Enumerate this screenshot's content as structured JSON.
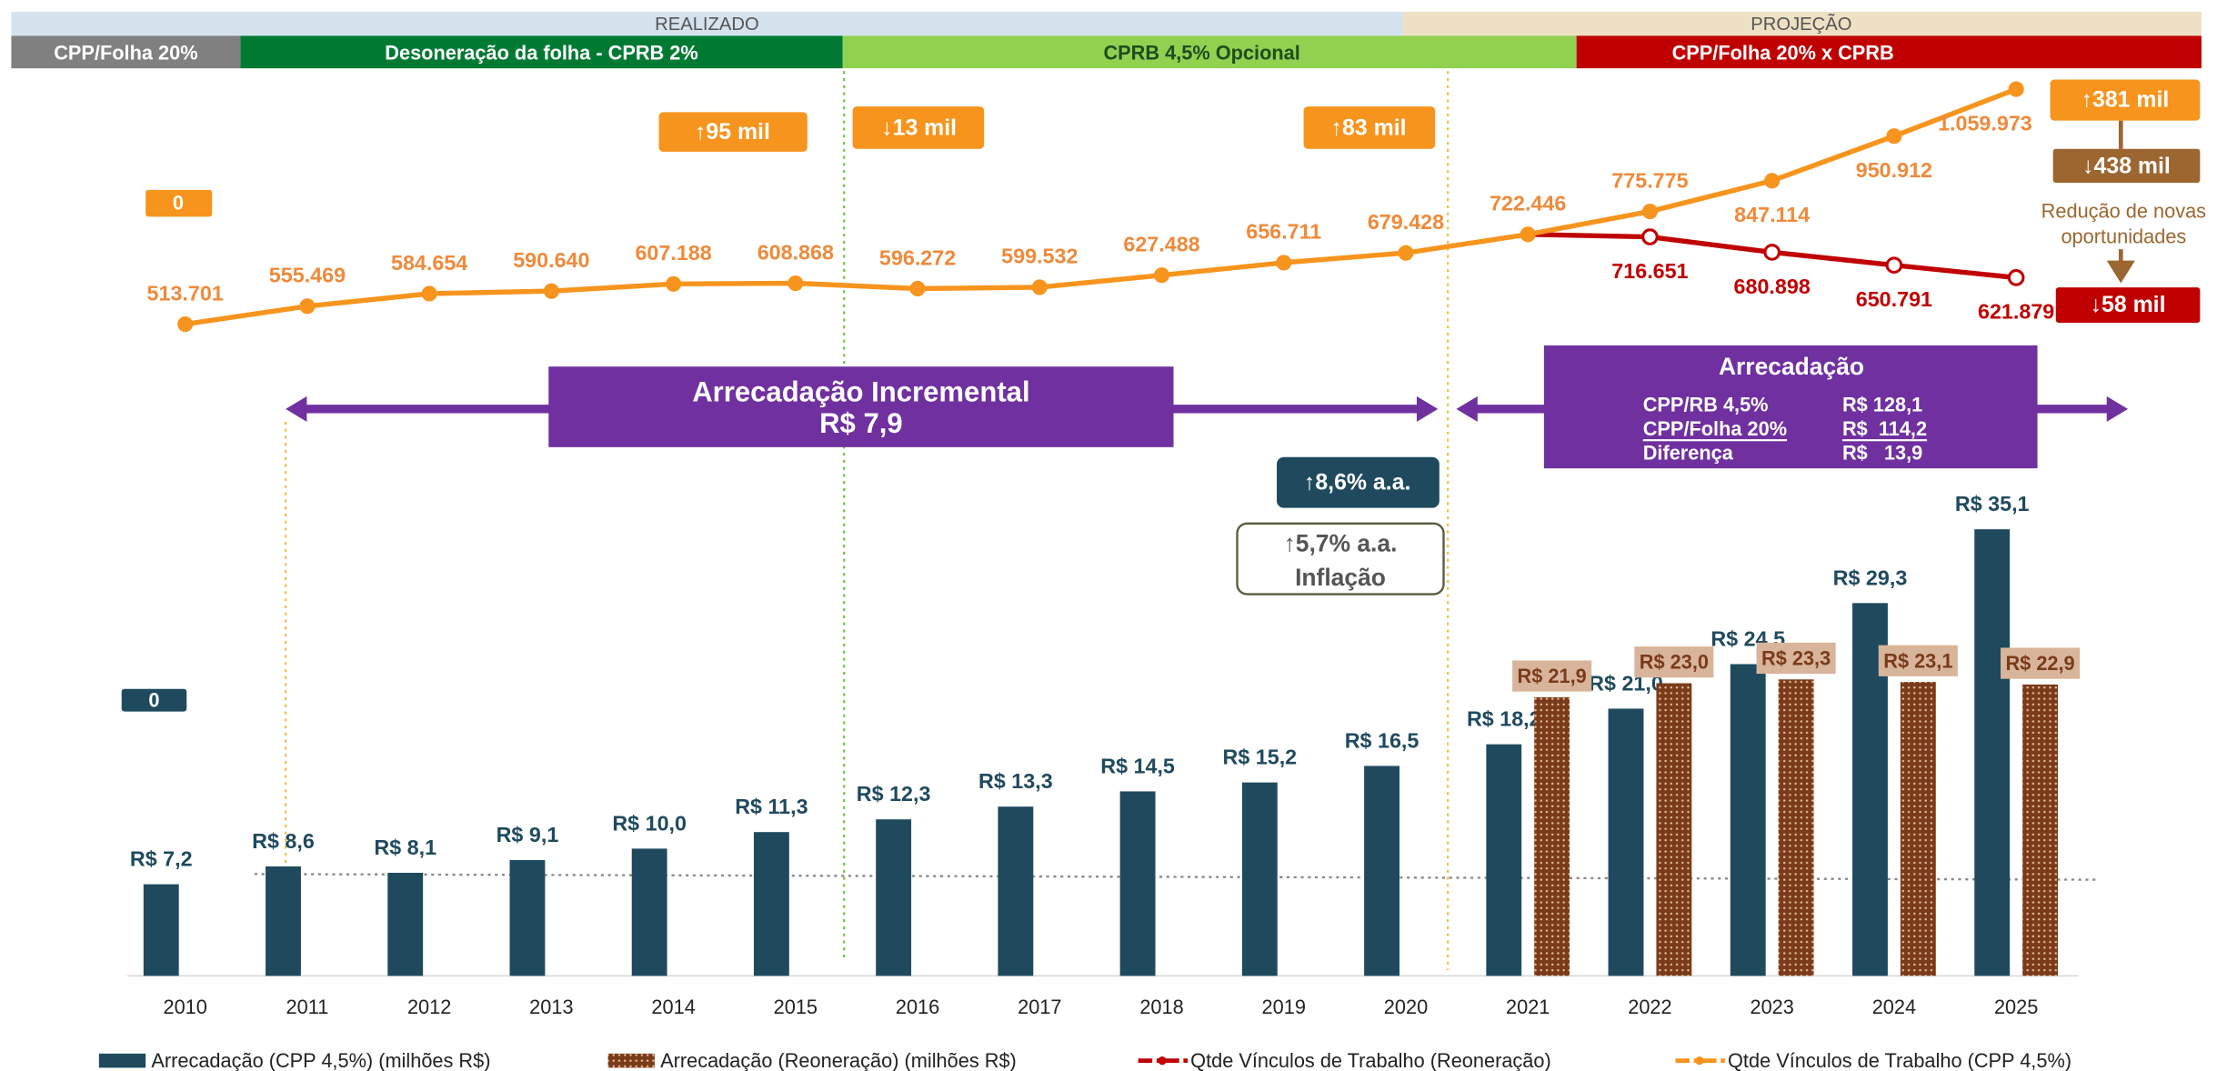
{
  "chart_data": {
    "type": "bar-line",
    "bands": {
      "phases": [
        "REALIZADO",
        "PROJEÇÃO"
      ],
      "periods": [
        "CPP/Folha 20%",
        "Desoneração da folha - CPRB 2%",
        "CPRB 4,5% Opcional",
        "CPP/Folha 20% x CPRB"
      ]
    },
    "categories": [
      "2010",
      "2011",
      "2012",
      "2013",
      "2014",
      "2015",
      "2016",
      "2017",
      "2018",
      "2019",
      "2020",
      "2021",
      "2022",
      "2023",
      "2024",
      "2025"
    ],
    "ylim": [
      0,
      40
    ],
    "y2lim": [
      400000,
      1100000
    ],
    "series": [
      {
        "name": "Arrecadação (CPP 4,5%) (milhões R$)",
        "type": "bar",
        "color": "#1f4a5e",
        "values": [
          7.2,
          8.6,
          8.1,
          9.1,
          10.0,
          11.3,
          12.3,
          13.3,
          14.5,
          15.2,
          16.5,
          18.2,
          21.0,
          24.5,
          29.3,
          35.1
        ],
        "value_labels": [
          "R$ 7,2",
          "R$ 8,6",
          "R$ 8,1",
          "R$ 9,1",
          "R$ 10,0",
          "R$ 11,3",
          "R$ 12,3",
          "R$ 13,3",
          "R$ 14,5",
          "R$ 15,2",
          "R$ 16,5",
          "R$ 18,2",
          "R$ 21,0",
          "R$ 24,5",
          "R$ 29,3",
          "R$ 35,1"
        ]
      },
      {
        "name": "Arrecadação (Reoneração) (milhões R$)",
        "type": "bar",
        "color": "#7a3b1a",
        "values": [
          null,
          null,
          null,
          null,
          null,
          null,
          null,
          null,
          null,
          null,
          null,
          21.9,
          23.0,
          23.3,
          23.1,
          22.9
        ],
        "value_labels": [
          null,
          null,
          null,
          null,
          null,
          null,
          null,
          null,
          null,
          null,
          null,
          "R$ 21,9",
          "R$ 23,0",
          "R$ 23,3",
          "R$ 23,1",
          "R$ 22,9"
        ]
      },
      {
        "name": "Qtde Vínculos de Trabalho (Reoneração)",
        "type": "line",
        "axis": "y2",
        "color": "#c00000",
        "values": [
          null,
          null,
          null,
          null,
          null,
          null,
          null,
          null,
          null,
          null,
          null,
          722446,
          716651,
          680898,
          650791,
          621879
        ],
        "value_labels": [
          null,
          null,
          null,
          null,
          null,
          null,
          null,
          null,
          null,
          null,
          null,
          null,
          "716.651",
          "680.898",
          "650.791",
          "621.879"
        ]
      },
      {
        "name": "Qtde Vínculos de Trabalho (CPP 4,5%)",
        "type": "line",
        "axis": "y2",
        "color": "#f7941d",
        "values": [
          513701,
          555469,
          584654,
          590640,
          607188,
          608868,
          596272,
          599532,
          627488,
          656711,
          679428,
          722446,
          775775,
          847114,
          950912,
          1059973
        ],
        "value_labels": [
          "513.701",
          "555.469",
          "584.654",
          "590.640",
          "607.188",
          "608.868",
          "596.272",
          "599.532",
          "627.488",
          "656.711",
          "679.428",
          "722.446",
          "775.775",
          "847.114",
          "950.912",
          "1.059.973"
        ]
      }
    ],
    "annotations": [
      "0",
      "↑95 mil",
      "↓13 mil",
      "↑83 mil",
      "↑381 mil",
      "↓438 mil",
      "Redução de novas",
      "oportunidades",
      "↓58 mil",
      "Arrecadação Incremental",
      "R$ 7,9",
      "↑8,6% a.a.",
      "↑5,7% a.a.",
      "Inflação",
      "0"
    ],
    "summary_box": {
      "title": "Arrecadação",
      "rows": [
        [
          "CPP/RB 4,5%",
          "R$ 128,1"
        ],
        [
          "CPP/Folha 20%",
          "R$  114,2"
        ],
        [
          "Diferença",
          "R$   13,9"
        ]
      ]
    }
  }
}
